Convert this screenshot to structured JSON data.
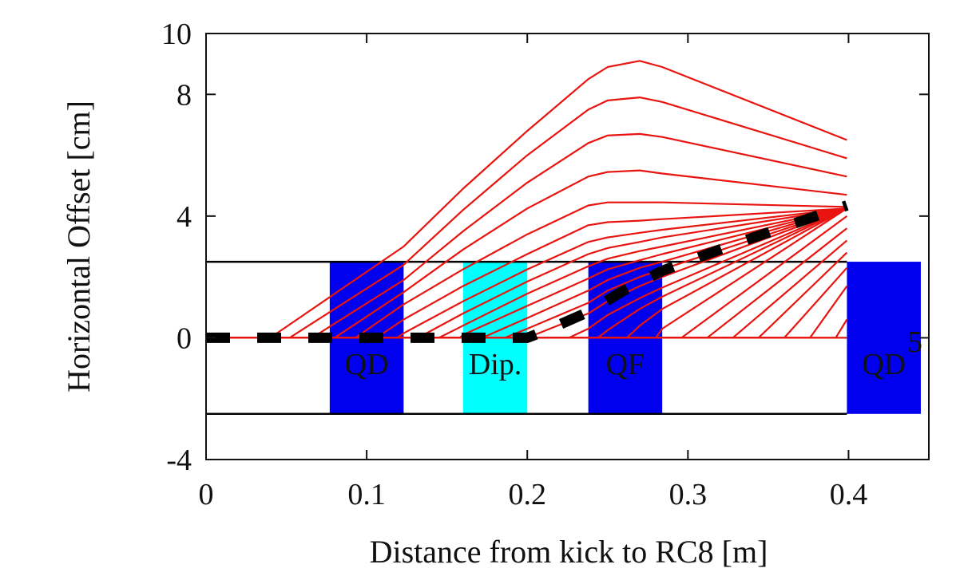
{
  "chart_data": {
    "type": "line",
    "title": "",
    "xlabel": "Distance from kick to RC8 [m]",
    "ylabel": "Horizontal Offset [cm]",
    "xlim": [
      0,
      0.45
    ],
    "ylim": [
      -4,
      10
    ],
    "x_ticks": [
      "0",
      "0.1",
      "0.2",
      "0.3",
      "0.4"
    ],
    "y_ticks": [
      "-4",
      "0",
      "4",
      "8",
      "10"
    ],
    "x_tick_values": [
      0,
      0.1,
      0.2,
      0.3,
      0.4
    ],
    "y_tick_values": [
      -4,
      0,
      4,
      8,
      10
    ],
    "grid": false,
    "aperture_y": [
      2.5,
      -2.5
    ],
    "elements": [
      {
        "label": "QD",
        "x0": 0.077,
        "x1": 0.123,
        "color": "#0000ee"
      },
      {
        "label": "Dip.",
        "x0": 0.16,
        "x1": 0.2,
        "color": "#00ffff"
      },
      {
        "label": "QF",
        "x0": 0.238,
        "x1": 0.284,
        "color": "#0000ee"
      },
      {
        "label": "QD",
        "x0": 0.399,
        "x1": 0.445,
        "color": "#0000ee"
      }
    ],
    "kick_trajectories": [
      {
        "x": [
          0.0,
          0.04,
          0.123,
          0.16,
          0.2,
          0.238,
          0.25,
          0.27,
          0.284,
          0.399
        ],
        "y": [
          0,
          0,
          3.0,
          4.9,
          6.8,
          8.5,
          8.9,
          9.1,
          8.9,
          6.5
        ]
      },
      {
        "x": [
          0.0,
          0.052,
          0.123,
          0.16,
          0.2,
          0.238,
          0.25,
          0.27,
          0.284,
          0.399
        ],
        "y": [
          0,
          0,
          2.4,
          4.2,
          6.0,
          7.5,
          7.8,
          7.9,
          7.75,
          5.9
        ]
      },
      {
        "x": [
          0.0,
          0.066,
          0.123,
          0.16,
          0.2,
          0.238,
          0.25,
          0.27,
          0.284,
          0.399
        ],
        "y": [
          0,
          0,
          1.9,
          3.5,
          5.1,
          6.4,
          6.65,
          6.7,
          6.6,
          5.3
        ]
      },
      {
        "x": [
          0.0,
          0.08,
          0.123,
          0.16,
          0.2,
          0.238,
          0.25,
          0.27,
          0.284,
          0.399
        ],
        "y": [
          0,
          0,
          1.5,
          2.9,
          4.25,
          5.3,
          5.45,
          5.5,
          5.4,
          4.7
        ]
      },
      {
        "x": [
          0.0,
          0.093,
          0.123,
          0.16,
          0.2,
          0.238,
          0.25,
          0.27,
          0.284,
          0.399
        ],
        "y": [
          0,
          0,
          1.1,
          2.25,
          3.4,
          4.35,
          4.45,
          4.45,
          4.45,
          4.3
        ]
      },
      {
        "x": [
          0.0,
          0.106,
          0.123,
          0.16,
          0.2,
          0.238,
          0.25,
          0.27,
          0.284,
          0.399
        ],
        "y": [
          0,
          0,
          0.6,
          1.7,
          2.75,
          3.7,
          3.8,
          3.85,
          3.9,
          4.25
        ]
      },
      {
        "x": [
          0.0,
          0.119,
          0.123,
          0.16,
          0.2,
          0.238,
          0.25,
          0.27,
          0.284,
          0.399
        ],
        "y": [
          0,
          0,
          0.15,
          1.2,
          2.25,
          3.15,
          3.3,
          3.45,
          3.55,
          4.25
        ]
      },
      {
        "x": [
          0.0,
          0.132,
          0.16,
          0.2,
          0.238,
          0.25,
          0.27,
          0.284,
          0.399
        ],
        "y": [
          0,
          0,
          0.8,
          1.85,
          2.75,
          2.95,
          3.15,
          3.3,
          4.25
        ]
      },
      {
        "x": [
          0.0,
          0.145,
          0.16,
          0.2,
          0.238,
          0.25,
          0.27,
          0.284,
          0.399
        ],
        "y": [
          0,
          0,
          0.4,
          1.45,
          2.35,
          2.6,
          2.85,
          3.0,
          4.25
        ]
      },
      {
        "x": [
          0.0,
          0.158,
          0.16,
          0.2,
          0.238,
          0.25,
          0.27,
          0.284,
          0.399
        ],
        "y": [
          0,
          0,
          0.1,
          1.05,
          1.95,
          2.25,
          2.55,
          2.75,
          4.25
        ]
      },
      {
        "x": [
          0.0,
          0.172,
          0.2,
          0.238,
          0.25,
          0.27,
          0.284,
          0.399
        ],
        "y": [
          0,
          0,
          0.65,
          1.55,
          1.9,
          2.3,
          2.5,
          4.25
        ]
      },
      {
        "x": [
          0.0,
          0.186,
          0.2,
          0.238,
          0.25,
          0.27,
          0.284,
          0.399
        ],
        "y": [
          0,
          0,
          0.3,
          1.15,
          1.55,
          2.0,
          2.25,
          4.25
        ]
      },
      {
        "x": [
          0.0,
          0.2,
          0.238,
          0.25,
          0.27,
          0.284,
          0.399
        ],
        "y": [
          0,
          0,
          0.8,
          1.2,
          1.7,
          2.0,
          4.25
        ]
      },
      {
        "x": [
          0.0,
          0.226,
          0.238,
          0.25,
          0.27,
          0.284,
          0.399
        ],
        "y": [
          0,
          0,
          0.3,
          0.75,
          1.3,
          1.65,
          4.25
        ]
      },
      {
        "x": [
          0.0,
          0.244,
          0.25,
          0.27,
          0.284,
          0.399
        ],
        "y": [
          0,
          0,
          0.25,
          0.95,
          1.35,
          4.25
        ]
      },
      {
        "x": [
          0.0,
          0.262,
          0.27,
          0.284,
          0.399
        ],
        "y": [
          0,
          0,
          0.4,
          0.95,
          4.25
        ]
      },
      {
        "x": [
          0.0,
          0.28,
          0.284,
          0.399
        ],
        "y": [
          0,
          0,
          0.3,
          4.25
        ]
      },
      {
        "x": [
          0.0,
          0.296,
          0.399
        ],
        "y": [
          0,
          0,
          4.0
        ]
      },
      {
        "x": [
          0.0,
          0.312,
          0.399
        ],
        "y": [
          0,
          0,
          3.6
        ]
      },
      {
        "x": [
          0.0,
          0.328,
          0.399
        ],
        "y": [
          0,
          0,
          3.2
        ]
      },
      {
        "x": [
          0.0,
          0.344,
          0.399
        ],
        "y": [
          0,
          0,
          2.8
        ]
      },
      {
        "x": [
          0.0,
          0.36,
          0.399
        ],
        "y": [
          0,
          0,
          2.3
        ]
      },
      {
        "x": [
          0.0,
          0.376,
          0.399
        ],
        "y": [
          0,
          0,
          1.7
        ]
      },
      {
        "x": [
          0.0,
          0.392,
          0.399
        ],
        "y": [
          0,
          0,
          0.6
        ]
      },
      {
        "x": [
          0.0,
          0.399
        ],
        "y": [
          0,
          0
        ]
      }
    ],
    "reference_trajectory": {
      "x": [
        0.0,
        0.2,
        0.21,
        0.238,
        0.26,
        0.284,
        0.33,
        0.399
      ],
      "y": [
        0,
        0,
        0.2,
        0.85,
        1.55,
        2.2,
        3.1,
        4.35
      ]
    },
    "colors": {
      "trajectory": "#e8140f",
      "reference": "#000000",
      "aperture": "#000000",
      "quadrupole": "#0000ee",
      "dipole": "#00ffff"
    },
    "stray_text": "5"
  }
}
